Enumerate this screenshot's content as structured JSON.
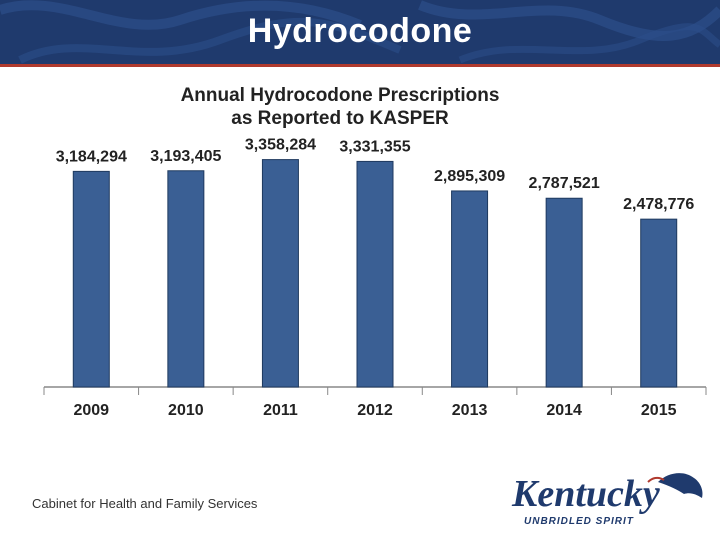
{
  "slide": {
    "title": "Hydrocodone"
  },
  "footer": {
    "text": "Cabinet for Health and Family Services"
  },
  "logo": {
    "name": "Kentucky",
    "tagline": "UNBRIDLED SPIRIT"
  },
  "colors": {
    "banner": "#1f3a6d",
    "accent": "#b03a2e",
    "bar": "#3a5f94",
    "bar_edge": "#1f3a5f"
  },
  "chart_data": {
    "type": "bar",
    "title": "Annual Hydrocodone  Prescriptions",
    "subtitle": "as Reported to KASPER",
    "categories": [
      "2009",
      "2010",
      "2011",
      "2012",
      "2013",
      "2014",
      "2015"
    ],
    "values": [
      3184294,
      3193405,
      3358284,
      3331355,
      2895309,
      2787521,
      2478776
    ],
    "value_labels": [
      "3,184,294",
      "3,193,405",
      "3,358,284",
      "3,331,355",
      "2,895,309",
      "2,787,521",
      "2,478,776"
    ],
    "ylim": [
      0,
      3500000
    ],
    "xlabel": "",
    "ylabel": "",
    "grid": false
  }
}
